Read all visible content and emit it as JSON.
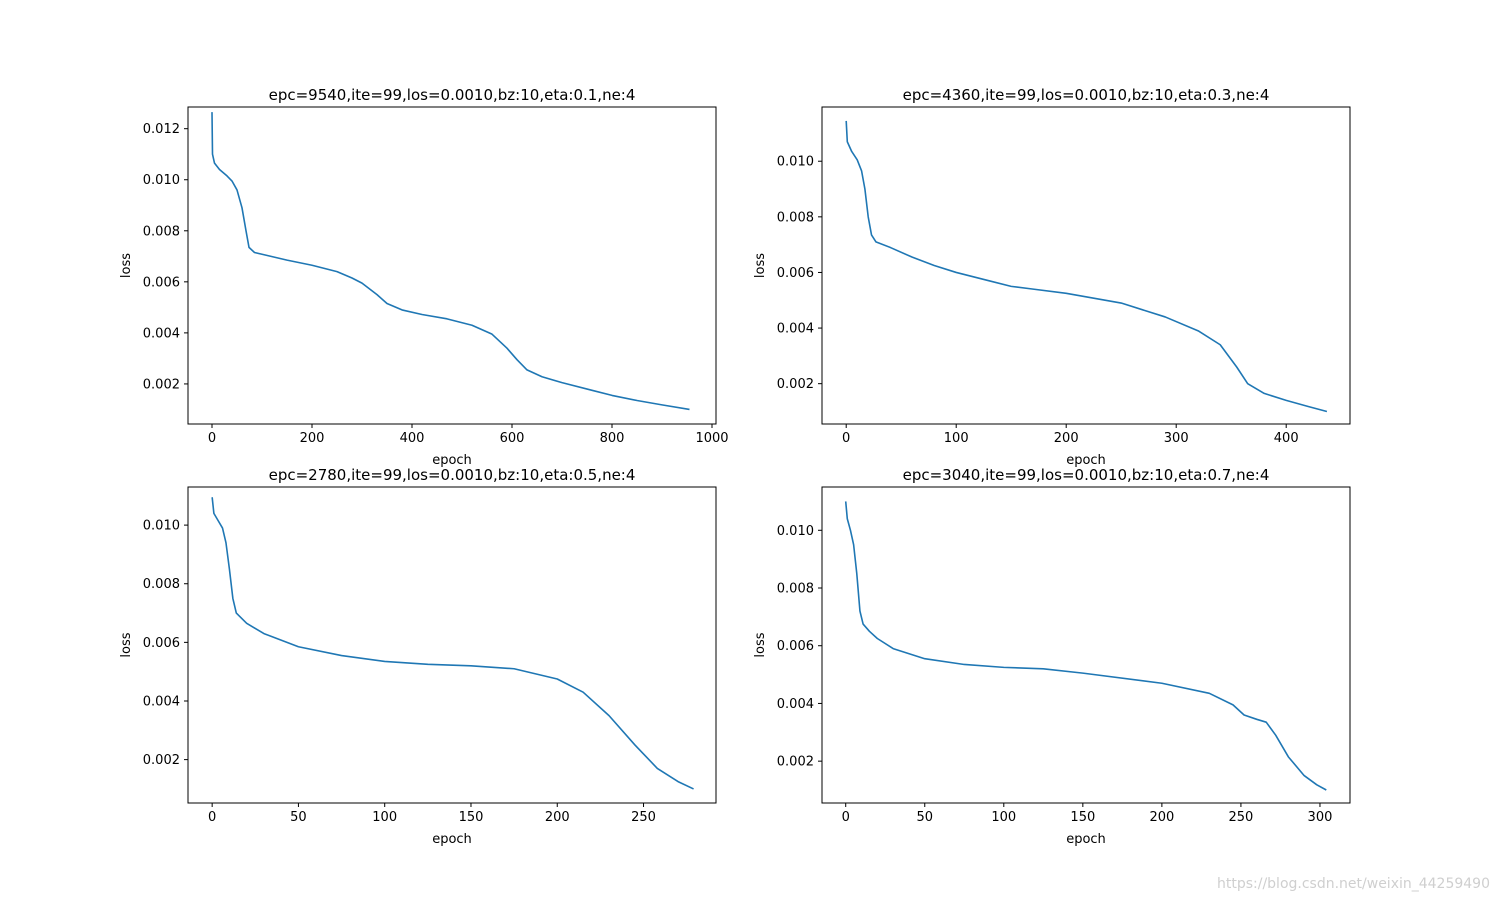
{
  "figure": {
    "watermark": "https://blog.csdn.net/weixin_44259490"
  },
  "colors": {
    "line": "#1f77b4",
    "axes": "#000000",
    "background": "#ffffff"
  },
  "chart_data": [
    {
      "type": "line",
      "title": "epc=9540,ite=99,los=0.0010,bz:10,eta:0.1,ne:4",
      "xlabel": "epoch",
      "ylabel": "loss",
      "xlim": [
        -48,
        1008
      ],
      "ylim": [
        0.00043,
        0.01285
      ],
      "xticks": [
        0,
        200,
        400,
        600,
        800,
        1000
      ],
      "yticks": [
        0.002,
        0.004,
        0.006,
        0.008,
        0.01,
        0.012
      ],
      "grid": false,
      "series": [
        {
          "points": [
            [
              0,
              0.01265
            ],
            [
              1,
              0.011
            ],
            [
              5,
              0.01065
            ],
            [
              15,
              0.0104
            ],
            [
              30,
              0.01015
            ],
            [
              40,
              0.00995
            ],
            [
              50,
              0.0096
            ],
            [
              60,
              0.0089
            ],
            [
              68,
              0.008
            ],
            [
              74,
              0.00735
            ],
            [
              85,
              0.00715
            ],
            [
              100,
              0.00708
            ],
            [
              150,
              0.00685
            ],
            [
              200,
              0.00665
            ],
            [
              250,
              0.0064
            ],
            [
              280,
              0.00615
            ],
            [
              300,
              0.00595
            ],
            [
              330,
              0.0055
            ],
            [
              350,
              0.00515
            ],
            [
              380,
              0.0049
            ],
            [
              420,
              0.00472
            ],
            [
              470,
              0.00455
            ],
            [
              520,
              0.0043
            ],
            [
              560,
              0.00395
            ],
            [
              590,
              0.0034
            ],
            [
              610,
              0.00295
            ],
            [
              630,
              0.00255
            ],
            [
              660,
              0.00228
            ],
            [
              700,
              0.00205
            ],
            [
              760,
              0.00175
            ],
            [
              800,
              0.00155
            ],
            [
              850,
              0.00135
            ],
            [
              900,
              0.00118
            ],
            [
              955,
              0.001
            ]
          ]
        }
      ]
    },
    {
      "type": "line",
      "title": "epc=4360,ite=99,los=0.0010,bz:10,eta:0.3,ne:4",
      "xlabel": "epoch",
      "ylabel": "loss",
      "xlim": [
        -22,
        458
      ],
      "ylim": [
        0.00055,
        0.01195
      ],
      "xticks": [
        0,
        100,
        200,
        300,
        400
      ],
      "yticks": [
        0.002,
        0.004,
        0.006,
        0.008,
        0.01
      ],
      "grid": false,
      "series": [
        {
          "points": [
            [
              0,
              0.01145
            ],
            [
              1,
              0.0107
            ],
            [
              5,
              0.01035
            ],
            [
              10,
              0.01005
            ],
            [
              14,
              0.00965
            ],
            [
              17,
              0.009
            ],
            [
              20,
              0.008
            ],
            [
              23,
              0.00735
            ],
            [
              27,
              0.0071
            ],
            [
              40,
              0.0069
            ],
            [
              60,
              0.00655
            ],
            [
              80,
              0.00625
            ],
            [
              100,
              0.006
            ],
            [
              130,
              0.0057
            ],
            [
              150,
              0.0055
            ],
            [
              170,
              0.0054
            ],
            [
              200,
              0.00525
            ],
            [
              250,
              0.0049
            ],
            [
              290,
              0.0044
            ],
            [
              320,
              0.0039
            ],
            [
              340,
              0.0034
            ],
            [
              355,
              0.0026
            ],
            [
              365,
              0.002
            ],
            [
              380,
              0.00165
            ],
            [
              400,
              0.0014
            ],
            [
              420,
              0.00118
            ],
            [
              437,
              0.001
            ]
          ]
        }
      ]
    },
    {
      "type": "line",
      "title": "epc=2780,ite=99,los=0.0010,bz:10,eta:0.5,ne:4",
      "xlabel": "epoch",
      "ylabel": "loss",
      "xlim": [
        -14,
        292
      ],
      "ylim": [
        0.00052,
        0.0113
      ],
      "xticks": [
        0,
        50,
        100,
        150,
        200,
        250
      ],
      "yticks": [
        0.002,
        0.004,
        0.006,
        0.008,
        0.01
      ],
      "grid": false,
      "series": [
        {
          "points": [
            [
              0,
              0.01095
            ],
            [
              1,
              0.0104
            ],
            [
              3,
              0.0102
            ],
            [
              6,
              0.0099
            ],
            [
              8,
              0.0094
            ],
            [
              10,
              0.0085
            ],
            [
              12,
              0.0075
            ],
            [
              14,
              0.007
            ],
            [
              20,
              0.00665
            ],
            [
              30,
              0.0063
            ],
            [
              50,
              0.00585
            ],
            [
              75,
              0.00555
            ],
            [
              100,
              0.00535
            ],
            [
              125,
              0.00525
            ],
            [
              150,
              0.0052
            ],
            [
              175,
              0.0051
            ],
            [
              200,
              0.00475
            ],
            [
              215,
              0.0043
            ],
            [
              230,
              0.0035
            ],
            [
              245,
              0.0025
            ],
            [
              258,
              0.0017
            ],
            [
              270,
              0.00125
            ],
            [
              279,
              0.001
            ]
          ]
        }
      ]
    },
    {
      "type": "line",
      "title": "epc=3040,ite=99,los=0.0010,bz:10,eta:0.7,ne:4",
      "xlabel": "epoch",
      "ylabel": "loss",
      "xlim": [
        -15,
        319
      ],
      "ylim": [
        0.00055,
        0.0115
      ],
      "xticks": [
        0,
        50,
        100,
        150,
        200,
        250,
        300
      ],
      "yticks": [
        0.002,
        0.004,
        0.006,
        0.008,
        0.01
      ],
      "grid": false,
      "series": [
        {
          "points": [
            [
              0,
              0.011
            ],
            [
              1,
              0.0104
            ],
            [
              3,
              0.01
            ],
            [
              5,
              0.0095
            ],
            [
              7,
              0.0085
            ],
            [
              9,
              0.0072
            ],
            [
              11,
              0.00675
            ],
            [
              15,
              0.0065
            ],
            [
              20,
              0.00625
            ],
            [
              30,
              0.0059
            ],
            [
              50,
              0.00555
            ],
            [
              75,
              0.00535
            ],
            [
              100,
              0.00525
            ],
            [
              125,
              0.0052
            ],
            [
              150,
              0.00505
            ],
            [
              200,
              0.0047
            ],
            [
              230,
              0.00435
            ],
            [
              245,
              0.00395
            ],
            [
              252,
              0.0036
            ],
            [
              260,
              0.00345
            ],
            [
              266,
              0.00335
            ],
            [
              272,
              0.0029
            ],
            [
              280,
              0.00215
            ],
            [
              290,
              0.0015
            ],
            [
              298,
              0.00118
            ],
            [
              304,
              0.001
            ]
          ]
        }
      ]
    }
  ]
}
